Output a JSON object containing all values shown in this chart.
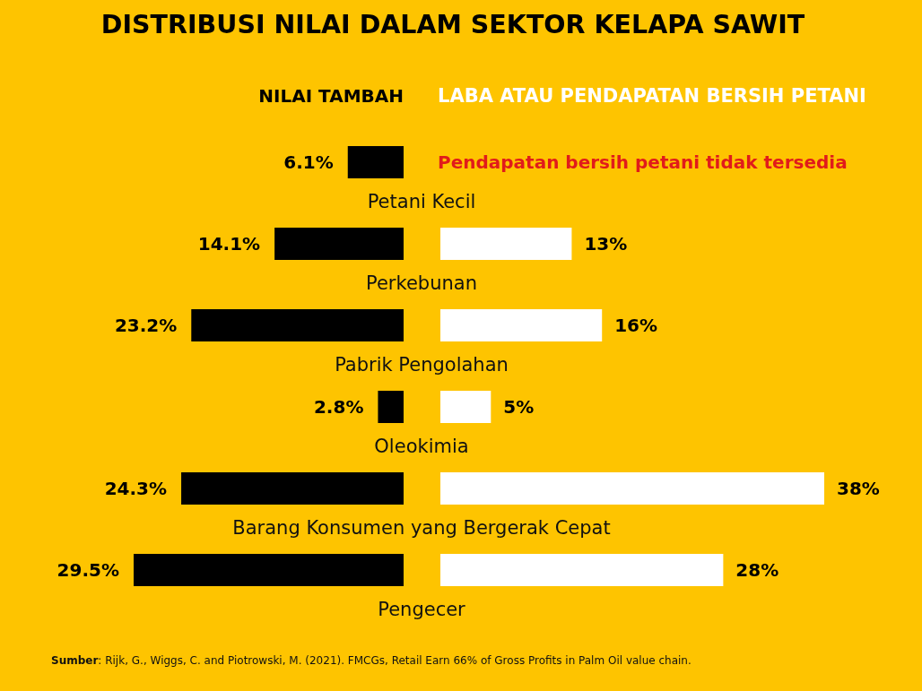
{
  "chart_data": [
    {
      "type": "bar",
      "orientation": "horizontal",
      "title": "DISTRIBUSI NILAI DALAM SEKTOR KELAPA SAWIT",
      "categories": [
        "Petani Kecil",
        "Perkebunan",
        "Pabrik Pengolahan",
        "Oleokimia",
        "Barang Konsumen yang Bergerak Cepat",
        "Pengecer"
      ],
      "series": [
        {
          "name": "NILAI TAMBAH",
          "color": "#000000",
          "values": [
            6.1,
            14.1,
            23.2,
            2.8,
            24.3,
            29.5
          ],
          "value_labels": [
            "6.1%",
            "14.1%",
            "23.2%",
            "2.8%",
            "24.3%",
            "29.5%"
          ]
        }
      ],
      "legend": "top",
      "annotations": [
        "Sumber: Rijk, G., Wiggs, C. and Piotrowski, M. (2021). FMCGs, Retail Earn 66% of Gross Profits in Palm Oil value chain."
      ]
    },
    {
      "type": "bar",
      "orientation": "horizontal",
      "categories": [
        null,
        null,
        null,
        null,
        null,
        null
      ],
      "series": [
        {
          "name": "LABA ATAU PENDAPATAN BERSIH PETANI",
          "color": "#ffffff",
          "values": [
            null,
            13,
            16,
            5,
            38,
            28
          ],
          "value_labels": [
            null,
            "13%",
            "16%",
            "5%",
            "38%",
            "28%"
          ]
        }
      ],
      "legend": "top",
      "annotations": [
        "Pendapatan bersih petani tidak tersedia"
      ]
    }
  ]
}
